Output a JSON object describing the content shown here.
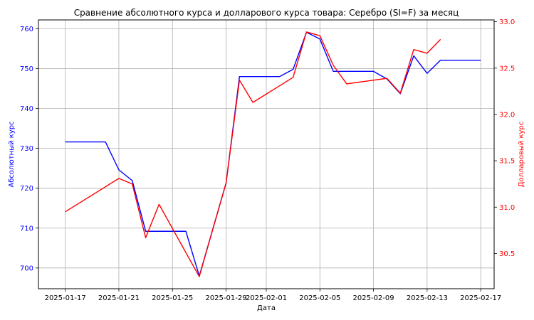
{
  "chart_data": {
    "type": "line",
    "title": "Сравнение абсолютного курса и долларового курса товара: Серебро (SI=F) за месяц",
    "xlabel": "Дата",
    "y_left_label": "Абсолютный курс",
    "y_right_label": "Долларовый курс",
    "x_tick_labels": [
      "2025-01-17",
      "2025-01-21",
      "2025-01-25",
      "2025-01-29",
      "2025-02-01",
      "2025-02-05",
      "2025-02-09",
      "2025-02-13",
      "2025-02-17"
    ],
    "y_left_ticks": [
      700,
      710,
      720,
      730,
      740,
      750,
      760
    ],
    "y_right_ticks": [
      30.5,
      31.0,
      31.5,
      32.0,
      32.5,
      33.0
    ],
    "y_left_range": [
      694.8,
      762.2
    ],
    "y_right_range": [
      30.12,
      33.02
    ],
    "x_range": [
      "2025-01-15",
      "2025-02-18"
    ],
    "grid": true,
    "left_axis_color": "#0000ff",
    "right_axis_color": "#ff0000",
    "series": [
      {
        "axis": "left",
        "color": "#0000ff",
        "points": [
          [
            "2025-01-17",
            731.6
          ],
          [
            "2025-01-20",
            731.6
          ],
          [
            "2025-01-21",
            724.6
          ],
          [
            "2025-01-22",
            721.9
          ],
          [
            "2025-01-23",
            709.2
          ],
          [
            "2025-01-26",
            709.2
          ],
          [
            "2025-01-27",
            698.0
          ],
          [
            "2025-01-29",
            721.3
          ],
          [
            "2025-01-30",
            748.0
          ],
          [
            "2025-02-02",
            748.0
          ],
          [
            "2025-02-03",
            749.8
          ],
          [
            "2025-02-04",
            759.1
          ],
          [
            "2025-02-05",
            757.4
          ],
          [
            "2025-02-06",
            749.3
          ],
          [
            "2025-02-09",
            749.3
          ],
          [
            "2025-02-10",
            747.4
          ],
          [
            "2025-02-11",
            743.7
          ],
          [
            "2025-02-12",
            753.2
          ],
          [
            "2025-02-13",
            748.8
          ],
          [
            "2025-02-14",
            752.1
          ],
          [
            "2025-02-17",
            752.1
          ]
        ]
      },
      {
        "axis": "right",
        "color": "#ff0000",
        "points": [
          [
            "2025-01-17",
            30.95
          ],
          [
            "2025-01-21",
            31.31
          ],
          [
            "2025-01-22",
            31.25
          ],
          [
            "2025-01-23",
            30.67
          ],
          [
            "2025-01-24",
            31.03
          ],
          [
            "2025-01-27",
            30.25
          ],
          [
            "2025-01-29",
            31.26
          ],
          [
            "2025-01-30",
            32.37
          ],
          [
            "2025-01-31",
            32.13
          ],
          [
            "2025-02-03",
            32.4
          ],
          [
            "2025-02-04",
            32.89
          ],
          [
            "2025-02-05",
            32.85
          ],
          [
            "2025-02-06",
            32.53
          ],
          [
            "2025-02-07",
            32.33
          ],
          [
            "2025-02-10",
            32.39
          ],
          [
            "2025-02-11",
            32.23
          ],
          [
            "2025-02-12",
            32.7
          ],
          [
            "2025-02-13",
            32.66
          ],
          [
            "2025-02-14",
            32.81
          ]
        ]
      }
    ]
  }
}
